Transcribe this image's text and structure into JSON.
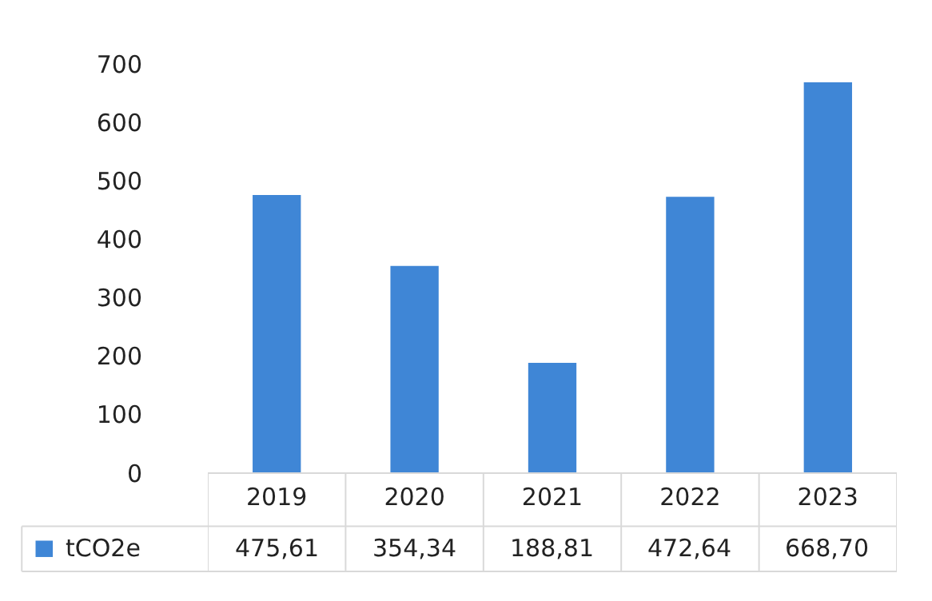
{
  "chart_data": {
    "type": "bar",
    "categories": [
      "2019",
      "2020",
      "2021",
      "2022",
      "2023"
    ],
    "series": [
      {
        "name": "tCO2e",
        "color": "#3f86d6",
        "values": [
          475.61,
          354.34,
          188.81,
          472.64,
          668.7
        ],
        "value_labels": [
          "475,61",
          "354,34",
          "188,81",
          "472,64",
          "668,70"
        ]
      }
    ],
    "ylim": [
      0,
      700
    ],
    "yticks": [
      0,
      100,
      200,
      300,
      400,
      500,
      600,
      700
    ],
    "grid": false,
    "legend": "bottom left"
  }
}
